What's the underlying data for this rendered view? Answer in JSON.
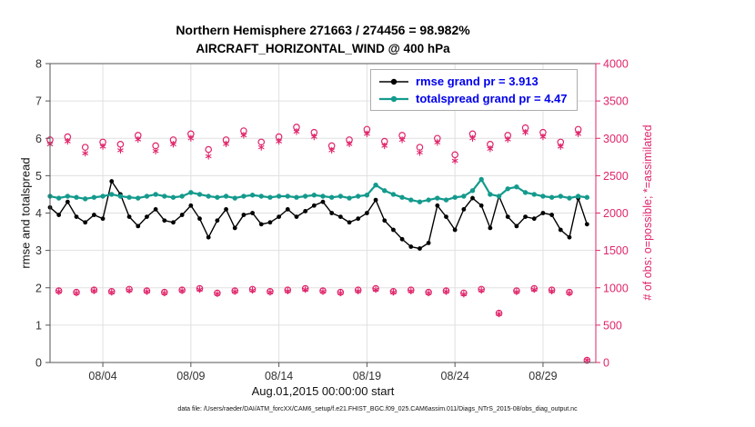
{
  "title": {
    "line1": "Northern Hemisphere 271663 / 274456 = 98.982%",
    "line2": "AIRCRAFT_HORIZONTAL_WIND @ 400 hPa"
  },
  "footer": "data file: /Users/raeder/DAI/ATM_forcXX/CAM6_setup/f.e21.FHIST_BGC.f09_025.CAM6assim.011/Diags_NTrS_2015-08/obs_diag_output.nc",
  "colors": {
    "grid": "#e0e0e0",
    "axis": "#555555",
    "right_axis": "#e0256b",
    "tick_label": "#333333",
    "legend_text": "#0000ee",
    "rmse": "#000000",
    "totalspread": "#149a8d",
    "obs": "#e0256b"
  },
  "chart_data": {
    "type": "line",
    "title": "Northern Hemisphere 271663 / 274456 = 98.982% — AIRCRAFT_HORIZONTAL_WIND @ 400 hPa",
    "xlabel": "Aug.01,2015 00:00:00 start",
    "ylabel_left": "rmse and totalspread",
    "ylabel_right": "# of obs: o=possible; *=assimilated",
    "xlim": [
      1,
      32
    ],
    "ylim": [
      0,
      8
    ],
    "y2lim": [
      0,
      4000
    ],
    "grid": true,
    "legend_position": "top-right-inside",
    "xticks": {
      "values": [
        4,
        9,
        14,
        19,
        24,
        29
      ],
      "labels": [
        "08/04",
        "08/09",
        "08/14",
        "08/19",
        "08/24",
        "08/29"
      ]
    },
    "yticks": [
      0,
      1,
      2,
      3,
      4,
      5,
      6,
      7,
      8
    ],
    "y2ticks": [
      0,
      500,
      1000,
      1500,
      2000,
      2500,
      3000,
      3500,
      4000
    ],
    "x_days": [
      1,
      1.5,
      2,
      2.5,
      3,
      3.5,
      4,
      4.5,
      5,
      5.5,
      6,
      6.5,
      7,
      7.5,
      8,
      8.5,
      9,
      9.5,
      10,
      10.5,
      11,
      11.5,
      12,
      12.5,
      13,
      13.5,
      14,
      14.5,
      15,
      15.5,
      16,
      16.5,
      17,
      17.5,
      18,
      18.5,
      19,
      19.5,
      20,
      20.5,
      21,
      21.5,
      22,
      22.5,
      23,
      23.5,
      24,
      24.5,
      25,
      25.5,
      26,
      26.5,
      27,
      27.5,
      28,
      28.5,
      29,
      29.5,
      30,
      30.5,
      31,
      31.5
    ],
    "series": [
      {
        "name": "rmse grand pr = 3.913",
        "color": "#000000",
        "axis": "left",
        "marker": "filled-circle",
        "values": [
          4.15,
          3.95,
          4.3,
          3.9,
          3.75,
          3.95,
          3.85,
          4.85,
          4.5,
          3.9,
          3.65,
          3.9,
          4.1,
          3.8,
          3.75,
          3.95,
          4.2,
          3.85,
          3.35,
          3.8,
          4.1,
          3.6,
          3.95,
          4.0,
          3.7,
          3.75,
          3.9,
          4.1,
          3.9,
          4.05,
          4.2,
          4.3,
          4.0,
          3.9,
          3.75,
          3.85,
          4.0,
          4.35,
          3.8,
          3.55,
          3.3,
          3.1,
          3.05,
          3.2,
          4.2,
          3.9,
          3.55,
          4.1,
          4.4,
          4.2,
          3.6,
          4.45,
          3.9,
          3.65,
          3.9,
          3.85,
          4.0,
          3.95,
          3.55,
          3.35,
          4.4,
          3.7
        ]
      },
      {
        "name": "totalspread grand pr = 4.47",
        "color": "#149a8d",
        "axis": "left",
        "marker": "filled-circle",
        "values": [
          4.45,
          4.4,
          4.45,
          4.42,
          4.38,
          4.42,
          4.45,
          4.5,
          4.45,
          4.42,
          4.4,
          4.45,
          4.5,
          4.45,
          4.42,
          4.45,
          4.55,
          4.5,
          4.45,
          4.42,
          4.45,
          4.4,
          4.45,
          4.48,
          4.45,
          4.42,
          4.45,
          4.45,
          4.42,
          4.45,
          4.48,
          4.45,
          4.42,
          4.45,
          4.4,
          4.45,
          4.48,
          4.75,
          4.6,
          4.5,
          4.42,
          4.35,
          4.3,
          4.35,
          4.4,
          4.35,
          4.42,
          4.45,
          4.6,
          4.9,
          4.5,
          4.45,
          4.65,
          4.7,
          4.55,
          4.5,
          4.45,
          4.42,
          4.45,
          4.4,
          4.45,
          4.42
        ]
      }
    ],
    "scatter": [
      {
        "name": "possible",
        "color": "#e0256b",
        "axis": "right",
        "marker": "open-circle",
        "values": [
          2980,
          960,
          3020,
          940,
          2880,
          970,
          2950,
          950,
          2920,
          980,
          3040,
          960,
          2900,
          940,
          2980,
          970,
          3060,
          990,
          2850,
          930,
          2980,
          960,
          3100,
          980,
          2950,
          950,
          3020,
          970,
          3150,
          990,
          3080,
          960,
          2900,
          940,
          2980,
          970,
          3120,
          990,
          2960,
          950,
          3040,
          970,
          2880,
          940,
          3000,
          960,
          2780,
          930,
          3060,
          980,
          2920,
          660,
          3040,
          960,
          3140,
          990,
          3080,
          970,
          2950,
          940,
          3120,
          30
        ]
      },
      {
        "name": "assimilated",
        "color": "#e0256b",
        "axis": "right",
        "marker": "asterisk",
        "values": [
          2920,
          950,
          2960,
          930,
          2800,
          960,
          2890,
          940,
          2840,
          965,
          2985,
          950,
          2830,
          930,
          2920,
          960,
          3000,
          975,
          2760,
          920,
          2925,
          950,
          3040,
          965,
          2880,
          940,
          2960,
          955,
          3090,
          975,
          3020,
          950,
          2840,
          930,
          2925,
          955,
          3060,
          975,
          2900,
          940,
          2980,
          955,
          2810,
          930,
          2945,
          950,
          2700,
          915,
          3000,
          965,
          2860,
          650,
          2985,
          945,
          3080,
          975,
          3020,
          955,
          2890,
          930,
          3060,
          30
        ]
      }
    ]
  }
}
